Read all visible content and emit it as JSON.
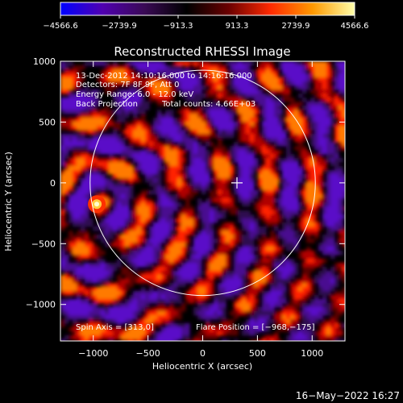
{
  "chart_data": {
    "type": "heatmap",
    "title": "Reconstructed RHESSI Image",
    "xlabel": "Heliocentric X (arcsec)",
    "ylabel": "Heliocentric Y (arcsec)",
    "xlim": [
      -1300,
      1300
    ],
    "ylim": [
      -1300,
      1000
    ],
    "xticks": [
      -1000,
      -500,
      0,
      500,
      1000
    ],
    "yticks": [
      -1000,
      -500,
      0,
      500,
      1000
    ],
    "xtick_labels": [
      "−1000",
      "−500",
      "0",
      "500",
      "1000"
    ],
    "ytick_labels": [
      "−1000",
      "−500",
      "0",
      "500",
      "1000"
    ],
    "colorbar": {
      "range": [
        -4566.6,
        4566.6
      ],
      "ticks": [
        -4566.6,
        -2739.9,
        -913.3,
        913.3,
        2739.9,
        4566.6
      ],
      "tick_labels": [
        "−4566.6",
        "−2739.9",
        "−913.3",
        "913.3",
        "2739.9",
        "4566.6"
      ],
      "colors": [
        "#0000ff",
        "#5000b0",
        "#3a0a55",
        "#000000",
        "#6a0000",
        "#ff2a00",
        "#ff9900",
        "#ffffaa"
      ]
    },
    "annotations": {
      "time_range": "13-Dec-2012 14:10:16.000 to 14:16:16.000",
      "detectors": "Detectors: 7F 8F 9F, Att 0",
      "energy_range": "Energy Range: 6.0 - 12.0 keV",
      "method": "Back Projection",
      "total_counts": "Total counts: 4.66E+03",
      "spin_axis": "Spin Axis = [313,0]",
      "flare_position": "Flare Position = [−968,−175]"
    },
    "spin_axis": [
      313,
      0
    ],
    "flare_position": [
      -968,
      -175
    ],
    "solar_limb": {
      "center": [
        0,
        0
      ],
      "radius": 975
    }
  },
  "footer": {
    "date": "16−May−2022 16:27"
  }
}
